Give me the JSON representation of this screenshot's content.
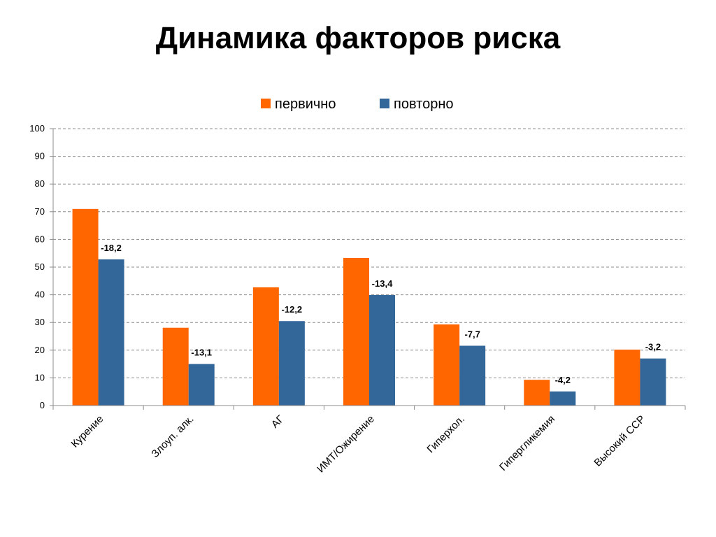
{
  "title": "Динамика факторов риска",
  "chart_data": {
    "type": "bar",
    "categories": [
      "Курение",
      "Злоуп. алк.",
      "АГ",
      "ИМТ/Ожирение",
      "Гиперхол.",
      "Гипергликемия",
      "Высокий ССР"
    ],
    "series": [
      {
        "name": "первично",
        "color": "#ff6600",
        "values": [
          71,
          28.1,
          42.7,
          53.3,
          29.3,
          9.3,
          20.2
        ]
      },
      {
        "name": "повторно",
        "color": "#336699",
        "values": [
          52.8,
          15,
          30.5,
          39.9,
          21.6,
          5.1,
          17
        ]
      }
    ],
    "data_labels": [
      "-18,2",
      "-13,1",
      "-12,2",
      "-13,4",
      "-7,7",
      "-4,2",
      "-3,2"
    ],
    "ylim": [
      0,
      100
    ],
    "yticks": [
      0,
      10,
      20,
      30,
      40,
      50,
      60,
      70,
      80,
      90,
      100
    ],
    "grid": true,
    "legend_position": "top",
    "title": "Динамика факторов риска",
    "xlabel": "",
    "ylabel": ""
  }
}
